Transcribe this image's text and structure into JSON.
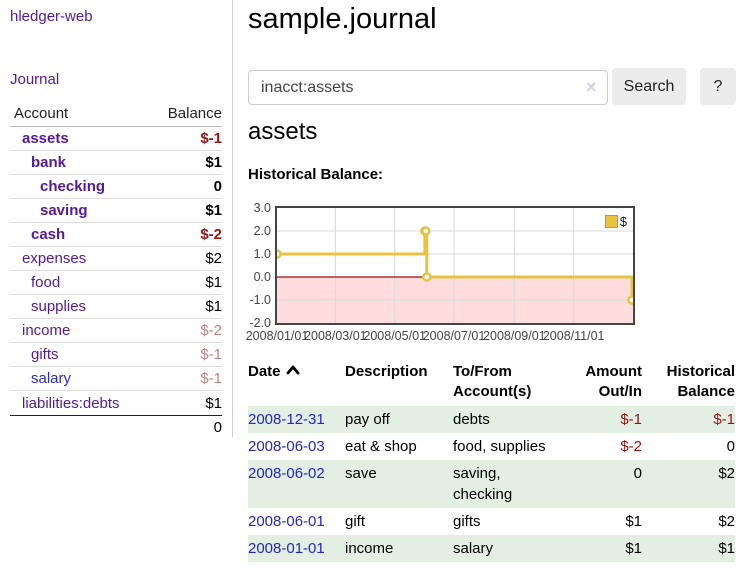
{
  "app": {
    "brand": "hledger-web"
  },
  "sidebar": {
    "journal_link": "Journal",
    "accounts": {
      "header_account": "Account",
      "header_balance": "Balance",
      "rows": [
        {
          "name": "assets",
          "balance": "$-1"
        },
        {
          "name": "bank",
          "balance": "$1"
        },
        {
          "name": "checking",
          "balance": "0"
        },
        {
          "name": "saving",
          "balance": "$1"
        },
        {
          "name": "cash",
          "balance": "$-2"
        },
        {
          "name": "expenses",
          "balance": "$2"
        },
        {
          "name": "food",
          "balance": "$1"
        },
        {
          "name": "supplies",
          "balance": "$1"
        },
        {
          "name": "income",
          "balance": "$-2"
        },
        {
          "name": "gifts",
          "balance": "$-1"
        },
        {
          "name": "salary",
          "balance": "$-1"
        },
        {
          "name": "liabilities:debts",
          "balance": "$1"
        }
      ],
      "total": "0"
    }
  },
  "main": {
    "title": "sample.journal",
    "search": {
      "value": "inacct:assets",
      "clear_icon": "×",
      "search_label": "Search",
      "help_label": "?"
    },
    "account_heading": "assets",
    "chart_label": "Historical Balance:"
  },
  "chart_data": {
    "type": "line",
    "title": "Historical Balance:",
    "series": [
      {
        "name": "$",
        "color": "#e8c342",
        "steps": true,
        "points": [
          [
            "2008-01-01",
            1
          ],
          [
            "2008-06-01",
            2
          ],
          [
            "2008-06-02",
            2
          ],
          [
            "2008-06-03",
            0
          ],
          [
            "2008-12-31",
            -1
          ]
        ]
      }
    ],
    "x_ticks": [
      "2008/01/01",
      "2008/03/01",
      "2008/05/01",
      "2008/07/01",
      "2008/09/01",
      "2008/11/01"
    ],
    "y_ticks": [
      "3.0",
      "2.0",
      "1.0",
      "0.0",
      "-1.0",
      "-2.0"
    ],
    "ylim": [
      -2,
      3
    ],
    "x_range": [
      "2008-01-01",
      "2009-01-01"
    ],
    "legend": {
      "label": "$",
      "position": "top-right"
    },
    "grid": true,
    "negative_region_color": "#ffdddd",
    "zero_line_color": "#9c0d0d"
  },
  "register": {
    "headers": {
      "date": "Date",
      "description": "Description",
      "accounts": "To/From Account(s)",
      "amount": "Amount Out/In",
      "balance": "Historical Balance"
    },
    "rows": [
      {
        "date": "2008-12-31",
        "description": "pay off",
        "accounts": "debts",
        "amount": "$-1",
        "balance": "$-1"
      },
      {
        "date": "2008-06-03",
        "description": "eat & shop",
        "accounts": "food, supplies",
        "amount": "$-2",
        "balance": "0"
      },
      {
        "date": "2008-06-02",
        "description": "save",
        "accounts": "saving, checking",
        "amount": "0",
        "balance": "$2"
      },
      {
        "date": "2008-06-01",
        "description": "gift",
        "accounts": "gifts",
        "amount": "$1",
        "balance": "$2"
      },
      {
        "date": "2008-01-01",
        "description": "income",
        "accounts": "salary",
        "amount": "$1",
        "balance": "$1"
      }
    ]
  }
}
